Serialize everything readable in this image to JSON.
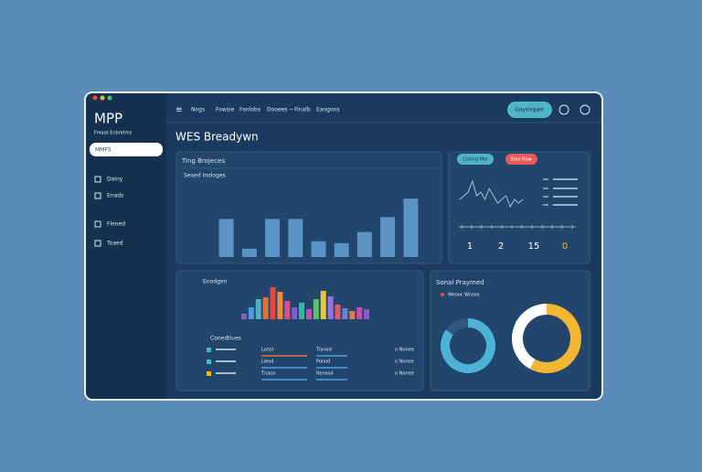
{
  "sidebar": {
    "brand": "MPP",
    "tagline": "Freaat Enbretms",
    "active": "MMFS",
    "items": [
      "Dainy",
      "Enads",
      "Fleoed",
      "Toaed"
    ]
  },
  "header": {
    "nav": [
      "Nogs",
      "Fowsie",
      "Fonlobs",
      "Dooees ~",
      "Finalb",
      "Eaogons"
    ],
    "button": "Gaysieppe"
  },
  "page_title": "WES Breadywn",
  "status": {
    "buttons": [
      "Cceing Mor",
      "Stoe Bow"
    ],
    "kpis": [
      1,
      2,
      15,
      0
    ]
  },
  "list": {
    "title": "Conedtiues",
    "rows": [
      [
        "Lonst",
        "Tianod",
        "o Nonee"
      ],
      [
        "Lieod",
        "Ponod",
        "o Nonee"
      ],
      [
        "Tnaon",
        "Renosd",
        "o Nonee"
      ]
    ]
  },
  "donut_panel": {
    "title": "Sonal Praymed",
    "legend": "Weooc  Wcose"
  },
  "chart_data": [
    {
      "type": "bar",
      "title": "Ting Brojeces",
      "subtitle": "Seoed Inologes",
      "categories": [
        null,
        null,
        null,
        null,
        null,
        null,
        null,
        null,
        null
      ],
      "values": [
        41,
        9,
        41,
        41,
        17,
        15,
        27,
        43,
        63
      ],
      "color": "#5b93c4",
      "ylim": [
        0,
        70
      ]
    },
    {
      "type": "line",
      "values": [
        3,
        4,
        5,
        8,
        4,
        5,
        3,
        6,
        4,
        2,
        3,
        4,
        1,
        3,
        2,
        3
      ],
      "color": "#9fc4e6",
      "ylim": [
        0,
        10
      ]
    },
    {
      "type": "bar",
      "title": "Enodgen",
      "categories": [
        null,
        null,
        null,
        null,
        null,
        null,
        null,
        null,
        null,
        null,
        null,
        null,
        null,
        null,
        null,
        null,
        null,
        null
      ],
      "values": [
        6,
        13,
        22,
        24,
        35,
        30,
        20,
        13,
        18,
        11,
        22,
        31,
        25,
        16,
        12,
        9,
        13,
        11
      ],
      "colors": [
        "#8a5cc8",
        "#4a9ee0",
        "#4ab3c8",
        "#e36f3a",
        "#e8483f",
        "#f08a3a",
        "#d94f8c",
        "#7a60d0",
        "#39b3a8",
        "#c04fb0",
        "#5ac06a",
        "#e8c740",
        "#9b6fe0",
        "#e35a5a",
        "#6c7fe0",
        "#e07a4a",
        "#c84fa8",
        "#8a5cc8"
      ],
      "ylim": [
        0,
        40
      ]
    },
    {
      "type": "pie",
      "values": [
        85,
        15
      ],
      "colors": [
        "#4db3d6",
        "#35577e"
      ]
    },
    {
      "type": "pie",
      "values": [
        58,
        42
      ],
      "colors": [
        "#f2b632",
        "#ffffff"
      ]
    }
  ]
}
